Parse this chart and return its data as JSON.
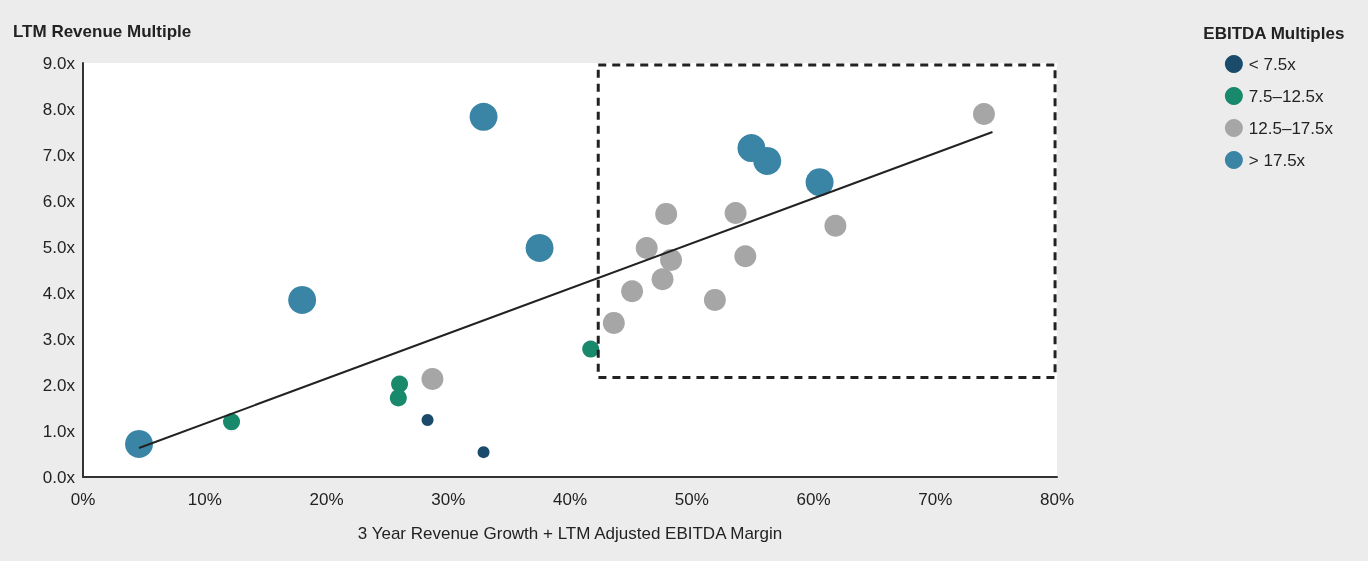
{
  "chart_data": {
    "type": "scatter",
    "xlabel": "3 Year Revenue Growth + LTM Adjusted EBITDA Margin",
    "ylabel": "LTM Revenue Multiple",
    "legend_title": "EBITDA Multiples",
    "legend": "top right",
    "marker": "circle",
    "grid": false,
    "xlim": [
      0,
      80
    ],
    "xticks": [
      {
        "value": 0,
        "label": "0%"
      },
      {
        "value": 10,
        "label": "10%"
      },
      {
        "value": 20,
        "label": "20%"
      },
      {
        "value": 30,
        "label": "30%"
      },
      {
        "value": 40,
        "label": "40%"
      },
      {
        "value": 50,
        "label": "50%"
      },
      {
        "value": 60,
        "label": "60%"
      },
      {
        "value": 70,
        "label": "70%"
      },
      {
        "value": 80,
        "label": "80%"
      }
    ],
    "ylim": [
      0,
      9
    ],
    "yticks": [
      {
        "value": 0,
        "label": "0.0x"
      },
      {
        "value": 1,
        "label": "1.0x"
      },
      {
        "value": 2,
        "label": "2.0x"
      },
      {
        "value": 3,
        "label": "3.0x"
      },
      {
        "value": 4,
        "label": "4.0x"
      },
      {
        "value": 5,
        "label": "5.0x"
      },
      {
        "value": 6,
        "label": "6.0x"
      },
      {
        "value": 7,
        "label": "7.0x"
      },
      {
        "value": 8,
        "label": "8.0x"
      },
      {
        "value": 9,
        "label": "9.0x"
      }
    ],
    "series": [
      {
        "name": "< 7.5x",
        "color": "#1b4b6b",
        "x": [
          28.3,
          32.9
        ],
        "values": [
          1.24,
          0.54
        ]
      },
      {
        "name": "7.5–12.5x",
        "color": "#19896b",
        "x": [
          12.2,
          26.0,
          25.9,
          41.7
        ],
        "values": [
          1.2,
          2.02,
          1.72,
          2.78
        ]
      },
      {
        "name": "12.5–17.5x",
        "color": "#a6a6a6",
        "x": [
          74.0,
          28.7,
          43.6,
          45.1,
          46.3,
          47.9,
          48.3,
          47.6,
          51.9,
          53.6,
          54.4,
          61.8
        ],
        "values": [
          7.89,
          2.13,
          3.35,
          4.04,
          4.98,
          5.72,
          4.72,
          4.3,
          3.85,
          5.74,
          4.8,
          5.46
        ]
      },
      {
        "name": "> 17.5x",
        "color": "#3a85a6",
        "x": [
          4.6,
          18.0,
          32.9,
          37.5,
          54.9,
          56.2,
          60.5
        ],
        "values": [
          0.72,
          3.85,
          7.83,
          4.98,
          7.15,
          6.87,
          6.41
        ]
      },
      {
        "type": "line",
        "marker": "none",
        "color": "#222222",
        "x": [
          4.6,
          74.7
        ],
        "values": [
          0.63,
          7.5
        ]
      }
    ]
  }
}
